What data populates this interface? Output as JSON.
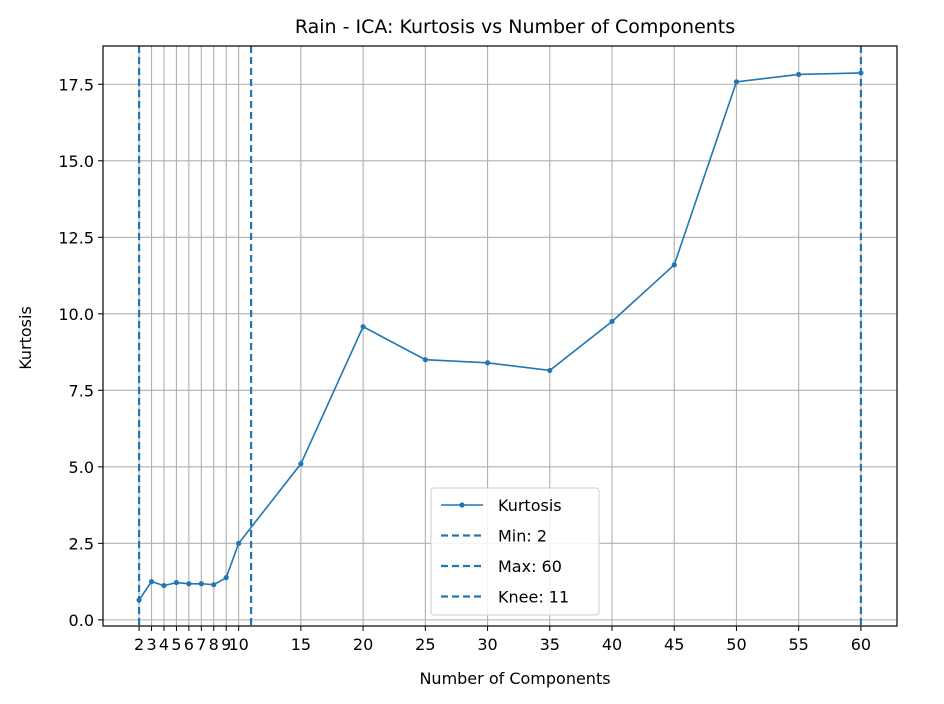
{
  "chart_data": {
    "type": "line",
    "title": "Rain - ICA: Kurtosis vs Number of Components",
    "xlabel": "Number of Components",
    "ylabel": "Kurtosis",
    "xlim": [
      -0.9,
      62.9
    ],
    "ylim": [
      -0.2,
      18.75
    ],
    "x_ticks": [
      2,
      3,
      4,
      5,
      6,
      7,
      8,
      9,
      10,
      15,
      20,
      25,
      30,
      35,
      40,
      45,
      50,
      55,
      60
    ],
    "x_tick_labels": [
      "2",
      "3",
      "4",
      "5",
      "6",
      "7",
      "8",
      "9",
      "10",
      "15",
      "20",
      "25",
      "30",
      "35",
      "40",
      "45",
      "50",
      "55",
      "60"
    ],
    "y_ticks": [
      0.0,
      2.5,
      5.0,
      7.5,
      10.0,
      12.5,
      15.0,
      17.5
    ],
    "y_tick_labels": [
      "0.0",
      "2.5",
      "5.0",
      "7.5",
      "10.0",
      "12.5",
      "15.0",
      "17.5"
    ],
    "grid": true,
    "legend_position": "bottom-center",
    "series": [
      {
        "name": "Kurtosis",
        "color": "#1f77b4",
        "x": [
          2,
          3,
          4,
          5,
          6,
          7,
          8,
          9,
          10,
          15,
          20,
          25,
          30,
          35,
          40,
          45,
          50,
          55,
          60
        ],
        "values": [
          0.65,
          1.25,
          1.12,
          1.22,
          1.18,
          1.18,
          1.15,
          1.38,
          2.5,
          5.1,
          9.58,
          8.5,
          8.4,
          8.15,
          9.75,
          11.6,
          17.58,
          17.82,
          17.87
        ]
      }
    ],
    "vlines": [
      {
        "label": "Min: 2",
        "x": 2,
        "color": "#1f77b4"
      },
      {
        "label": "Max: 60",
        "x": 60,
        "color": "#1f77b4"
      },
      {
        "label": "Knee: 11",
        "x": 11,
        "color": "#1f77b4"
      }
    ]
  }
}
